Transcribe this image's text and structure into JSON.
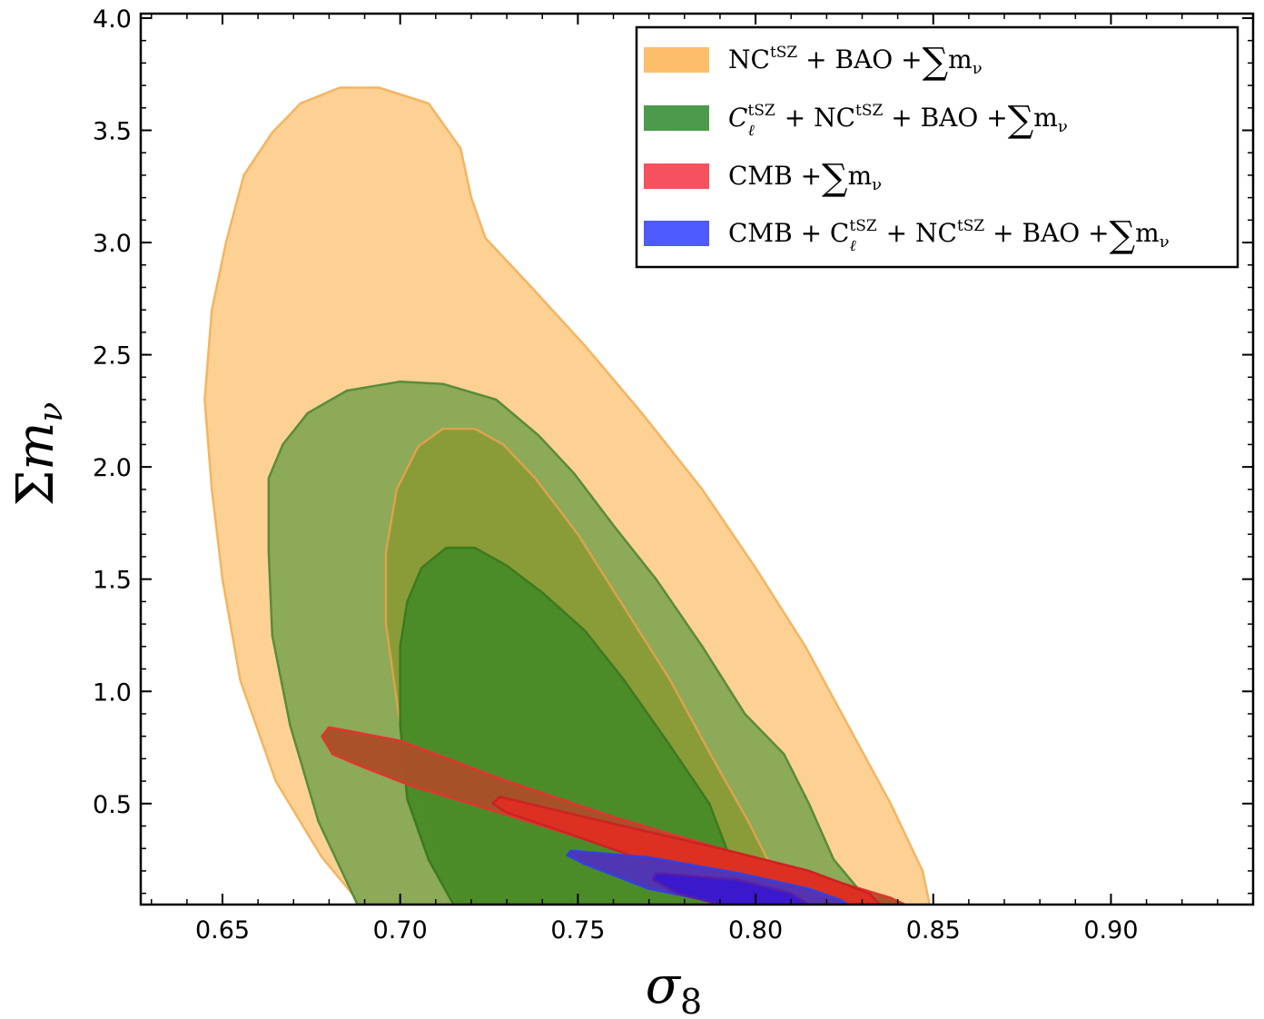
{
  "chart_data": {
    "type": "contour",
    "xlabel": "σ8",
    "ylabel": "Σm_ν",
    "xlim": [
      0.627,
      0.94
    ],
    "ylim": [
      0.05,
      4.02
    ],
    "x_ticks": [
      "0.65",
      "0.70",
      "0.75",
      "0.80",
      "0.85",
      "0.90"
    ],
    "y_ticks": [
      "0.5",
      "1.0",
      "1.5",
      "2.0",
      "2.5",
      "3.0",
      "3.5",
      "4.0"
    ],
    "x_tick_values": [
      0.65,
      0.7,
      0.75,
      0.8,
      0.85,
      0.9
    ],
    "y_tick_values": [
      0.5,
      1.0,
      1.5,
      2.0,
      2.5,
      3.0,
      3.5,
      4.0
    ],
    "legend_position": "top-right",
    "legend": [
      {
        "text": "NC^tSZ + BAO +∑m_ν",
        "color": "#fdbe6b"
      },
      {
        "text": "C_ℓ^tSZ + NC^tSZ + BAO +∑m_ν",
        "color": "#4c9a4c"
      },
      {
        "text": "CMB +∑m_ν",
        "color": "#f5515f"
      },
      {
        "text": "CMB + C_ℓ^tSZ + NC^tSZ + BAO +∑m_ν",
        "color": "#4d5aff"
      }
    ],
    "contours": [
      {
        "series": "NC^tSZ + BAO +∑m_ν",
        "level": "95%",
        "fill": "#fdcf91",
        "stroke": "#f5b460",
        "points": [
          [
            0.689,
            0.05
          ],
          [
            0.678,
            0.26
          ],
          [
            0.665,
            0.6
          ],
          [
            0.655,
            1.05
          ],
          [
            0.65,
            1.5
          ],
          [
            0.647,
            1.9
          ],
          [
            0.645,
            2.3
          ],
          [
            0.647,
            2.7
          ],
          [
            0.651,
            3.0
          ],
          [
            0.656,
            3.3
          ],
          [
            0.664,
            3.49
          ],
          [
            0.672,
            3.62
          ],
          [
            0.683,
            3.69
          ],
          [
            0.694,
            3.69
          ],
          [
            0.708,
            3.62
          ],
          [
            0.717,
            3.42
          ],
          [
            0.72,
            3.2
          ],
          [
            0.724,
            3.02
          ],
          [
            0.737,
            2.8
          ],
          [
            0.752,
            2.54
          ],
          [
            0.768,
            2.24
          ],
          [
            0.785,
            1.9
          ],
          [
            0.8,
            1.55
          ],
          [
            0.814,
            1.2
          ],
          [
            0.826,
            0.85
          ],
          [
            0.838,
            0.5
          ],
          [
            0.847,
            0.2
          ],
          [
            0.849,
            0.05
          ]
        ]
      },
      {
        "series": "C_ℓ^tSZ + NC^tSZ + BAO +∑m_ν",
        "level": "95%",
        "fill": "#88a856",
        "stroke": "#5a8c3a",
        "points": [
          [
            0.688,
            0.05
          ],
          [
            0.677,
            0.42
          ],
          [
            0.669,
            0.85
          ],
          [
            0.664,
            1.25
          ],
          [
            0.663,
            1.62
          ],
          [
            0.663,
            1.95
          ],
          [
            0.667,
            2.1
          ],
          [
            0.674,
            2.24
          ],
          [
            0.685,
            2.34
          ],
          [
            0.7,
            2.38
          ],
          [
            0.712,
            2.37
          ],
          [
            0.727,
            2.3
          ],
          [
            0.739,
            2.14
          ],
          [
            0.749,
            1.97
          ],
          [
            0.76,
            1.74
          ],
          [
            0.772,
            1.5
          ],
          [
            0.785,
            1.2
          ],
          [
            0.797,
            0.9
          ],
          [
            0.808,
            0.72
          ],
          [
            0.815,
            0.5
          ],
          [
            0.822,
            0.25
          ],
          [
            0.831,
            0.08
          ],
          [
            0.832,
            0.05
          ]
        ]
      },
      {
        "series": "NC^tSZ + BAO +∑m_ν",
        "level": "68%",
        "fill": "#8a9c36",
        "stroke": "#dba24d",
        "points": [
          [
            0.716,
            0.05
          ],
          [
            0.707,
            0.45
          ],
          [
            0.7,
            0.85
          ],
          [
            0.696,
            1.3
          ],
          [
            0.696,
            1.62
          ],
          [
            0.699,
            1.9
          ],
          [
            0.705,
            2.09
          ],
          [
            0.712,
            2.17
          ],
          [
            0.721,
            2.17
          ],
          [
            0.729,
            2.1
          ],
          [
            0.738,
            1.95
          ],
          [
            0.75,
            1.7
          ],
          [
            0.762,
            1.4
          ],
          [
            0.776,
            1.05
          ],
          [
            0.788,
            0.7
          ],
          [
            0.798,
            0.42
          ],
          [
            0.805,
            0.2
          ],
          [
            0.807,
            0.05
          ]
        ]
      },
      {
        "series": "C_ℓ^tSZ + NC^tSZ + BAO +∑m_ν",
        "level": "68%",
        "fill": "#4a8b28",
        "stroke": "#3c7a20",
        "points": [
          [
            0.715,
            0.05
          ],
          [
            0.708,
            0.25
          ],
          [
            0.702,
            0.52
          ],
          [
            0.7,
            0.85
          ],
          [
            0.7,
            1.2
          ],
          [
            0.702,
            1.4
          ],
          [
            0.706,
            1.55
          ],
          [
            0.713,
            1.64
          ],
          [
            0.721,
            1.64
          ],
          [
            0.73,
            1.56
          ],
          [
            0.74,
            1.44
          ],
          [
            0.752,
            1.27
          ],
          [
            0.763,
            1.05
          ],
          [
            0.775,
            0.78
          ],
          [
            0.787,
            0.5
          ],
          [
            0.793,
            0.25
          ],
          [
            0.795,
            0.05
          ]
        ]
      },
      {
        "series": "CMB +∑m_ν",
        "level": "95%",
        "fill": "#aa5028",
        "stroke": "#e0352f",
        "points": [
          [
            0.68,
            0.84
          ],
          [
            0.7,
            0.78
          ],
          [
            0.73,
            0.6
          ],
          [
            0.76,
            0.44
          ],
          [
            0.79,
            0.3
          ],
          [
            0.815,
            0.19
          ],
          [
            0.838,
            0.08
          ],
          [
            0.842,
            0.05
          ],
          [
            0.814,
            0.05
          ],
          [
            0.79,
            0.14
          ],
          [
            0.76,
            0.3
          ],
          [
            0.73,
            0.45
          ],
          [
            0.703,
            0.58
          ],
          [
            0.69,
            0.66
          ],
          [
            0.681,
            0.72
          ],
          [
            0.678,
            0.8
          ]
        ]
      },
      {
        "series": "CMB +∑m_ν",
        "level": "68%",
        "fill": "#dd2f22",
        "stroke": "#cc2222",
        "points": [
          [
            0.728,
            0.53
          ],
          [
            0.76,
            0.41
          ],
          [
            0.79,
            0.3
          ],
          [
            0.815,
            0.2
          ],
          [
            0.832,
            0.1
          ],
          [
            0.835,
            0.05
          ],
          [
            0.818,
            0.05
          ],
          [
            0.795,
            0.13
          ],
          [
            0.77,
            0.24
          ],
          [
            0.745,
            0.38
          ],
          [
            0.73,
            0.46
          ],
          [
            0.726,
            0.5
          ]
        ]
      },
      {
        "series": "CMB + C_ℓ^tSZ + NC^tSZ + BAO +∑m_ν",
        "level": "95%",
        "fill": "#5134b6",
        "stroke": "#3340e0",
        "points": [
          [
            0.748,
            0.29
          ],
          [
            0.77,
            0.26
          ],
          [
            0.795,
            0.19
          ],
          [
            0.815,
            0.12
          ],
          [
            0.824,
            0.07
          ],
          [
            0.826,
            0.05
          ],
          [
            0.792,
            0.05
          ],
          [
            0.77,
            0.12
          ],
          [
            0.752,
            0.23
          ],
          [
            0.747,
            0.27
          ]
        ]
      },
      {
        "series": "CMB + C_ℓ^tSZ + NC^tSZ + BAO +∑m_ν",
        "level": "68%",
        "fill": "#3a18cc",
        "stroke": "#5a1ea8",
        "points": [
          [
            0.772,
            0.19
          ],
          [
            0.795,
            0.16
          ],
          [
            0.81,
            0.1
          ],
          [
            0.815,
            0.05
          ],
          [
            0.79,
            0.05
          ],
          [
            0.778,
            0.1
          ],
          [
            0.771,
            0.16
          ]
        ]
      }
    ]
  }
}
